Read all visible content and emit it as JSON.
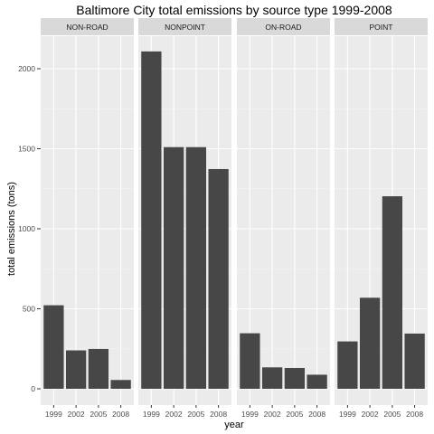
{
  "chart_data": {
    "type": "bar",
    "title": "Baltimore City total emissions by source type 1999-2008",
    "xlabel": "year",
    "ylabel": "total emissions (tons)",
    "categories": [
      "1999",
      "2002",
      "2005",
      "2008"
    ],
    "ylim": [
      0,
      2220
    ],
    "yticks": [
      0,
      500,
      1000,
      1500,
      2000
    ],
    "grid": true,
    "bar_color": "#474747",
    "panel_background": "#ebebeb",
    "strip_background": "#d9d9d9",
    "facets": [
      {
        "name": "NON-ROAD",
        "values": [
          522,
          240,
          249,
          55
        ]
      },
      {
        "name": "NONPOINT",
        "values": [
          2108,
          1510,
          1510,
          1373
        ]
      },
      {
        "name": "ON-ROAD",
        "values": [
          347,
          134,
          130,
          88
        ]
      },
      {
        "name": "POINT",
        "values": [
          296,
          569,
          1203,
          345
        ]
      }
    ]
  }
}
